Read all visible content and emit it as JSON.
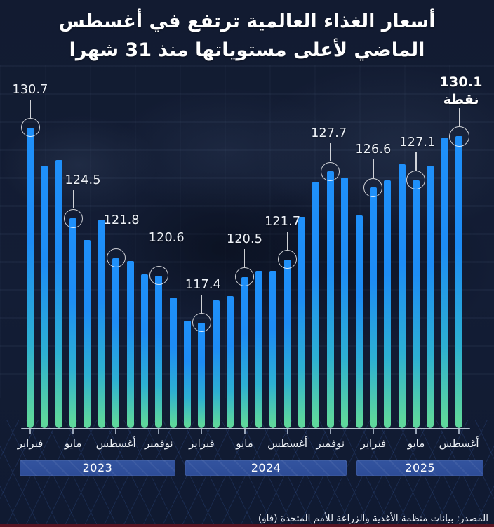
{
  "title": {
    "line1": "أسعار الغذاء العالمية ترتفع في أغسطس",
    "line2": "الماضي لأعلى مستوياتها منذ 31 شهرا"
  },
  "source": "المصدر: بيانات منظمة الأغذية والزراعة للأمم المتحدة (فاو)",
  "chart_data": {
    "type": "bar",
    "title": "أسعار الغذاء العالمية ترتفع في أغسطس الماضي لأعلى مستوياتها منذ 31 شهرا",
    "unit_label": "نقطة",
    "period": "فبراير 2023 - أغسطس 2025",
    "values": [
      130.7,
      128.1,
      128.5,
      124.5,
      123.0,
      124.4,
      121.8,
      121.6,
      120.7,
      120.6,
      119.1,
      117.5,
      117.4,
      118.9,
      119.2,
      120.5,
      120.9,
      120.9,
      121.7,
      124.6,
      127.0,
      127.7,
      127.3,
      124.7,
      126.6,
      127.1,
      128.2,
      127.1,
      128.1,
      130.0,
      130.1
    ],
    "x_tick_labels": [
      {
        "index": 0,
        "label": "فبراير"
      },
      {
        "index": 3,
        "label": "مايو"
      },
      {
        "index": 6,
        "label": "أغسطس"
      },
      {
        "index": 9,
        "label": "نوفمبر"
      },
      {
        "index": 12,
        "label": "فبراير"
      },
      {
        "index": 15,
        "label": "مايو"
      },
      {
        "index": 18,
        "label": "أغسطس"
      },
      {
        "index": 21,
        "label": "نوفمبر"
      },
      {
        "index": 24,
        "label": "فبراير"
      },
      {
        "index": 27,
        "label": "مايو"
      },
      {
        "index": 30,
        "label": "أغسطس"
      }
    ],
    "annotations": [
      {
        "index": 0,
        "label": "130.7",
        "dx": 0
      },
      {
        "index": 3,
        "label": "124.5",
        "dx": 14
      },
      {
        "index": 6,
        "label": "121.8",
        "dx": 8
      },
      {
        "index": 9,
        "label": "120.6",
        "dx": 11
      },
      {
        "index": 12,
        "label": "117.4",
        "dx": 2
      },
      {
        "index": 15,
        "label": "120.5",
        "dx": 0
      },
      {
        "index": 18,
        "label": "121.7",
        "dx": -7
      },
      {
        "index": 21,
        "label": "127.7",
        "dx": -2
      },
      {
        "index": 24,
        "label": "126.6",
        "dx": 0
      },
      {
        "index": 27,
        "label": "127.1",
        "dx": 2
      },
      {
        "index": 30,
        "label": "130.1",
        "dx": 3,
        "bold": true,
        "unit": "نقطة"
      }
    ],
    "year_bands": [
      {
        "label": "2023",
        "from": 0,
        "to": 10
      },
      {
        "label": "2024",
        "from": 11,
        "to": 22
      },
      {
        "label": "2025",
        "from": 23,
        "to": 30
      }
    ],
    "ylim": [
      110.2,
      133
    ],
    "grid": false,
    "legend": "none",
    "colors": {
      "bar_top": "#1f90fa",
      "bar_bottom": "#5ed79c",
      "band": "#2d4c97",
      "axis": "#b6c0d0",
      "accent_strip": "#5a1422",
      "background": "#131d33"
    }
  }
}
